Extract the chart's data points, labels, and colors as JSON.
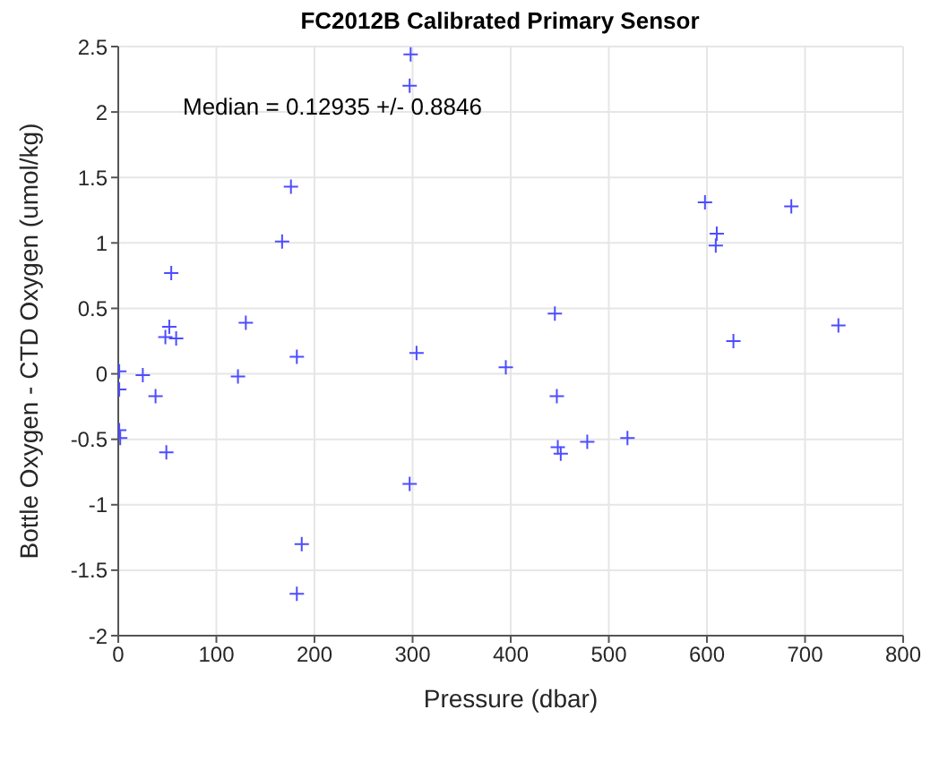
{
  "chart_data": {
    "type": "scatter",
    "title": "FC2012B Calibrated Primary Sensor",
    "xlabel": "Pressure (dbar)",
    "ylabel": "Bottle Oxygen - CTD Oxygen (umol/kg)",
    "annotations": [
      "Median = 0.12935 +/- 0.8846"
    ],
    "xlim": [
      0,
      800
    ],
    "xticks": [
      0,
      100,
      200,
      300,
      400,
      500,
      600,
      700,
      800
    ],
    "ylim": [
      -2,
      2.5
    ],
    "yticks": [
      -2,
      -1.5,
      -1,
      -0.5,
      0,
      0.5,
      1,
      1.5,
      2,
      2.5
    ],
    "grid": true,
    "marker": "cross",
    "series": [
      {
        "color": "#4d4dff",
        "x": [
          1,
          1,
          1,
          2,
          25,
          38,
          49,
          54,
          52,
          48,
          59,
          130,
          122,
          167,
          176,
          182,
          182,
          187,
          298,
          297,
          304,
          297,
          395,
          445,
          447,
          448,
          451,
          478,
          519,
          627,
          598,
          610,
          609,
          686,
          734
        ],
        "values": [
          0.02,
          -0.12,
          -0.43,
          -0.49,
          -0.01,
          -0.17,
          -0.6,
          0.77,
          0.36,
          0.28,
          0.27,
          0.39,
          -0.02,
          1.01,
          1.43,
          0.13,
          -1.68,
          -1.3,
          2.44,
          2.2,
          0.16,
          -0.84,
          0.05,
          0.46,
          -0.17,
          -0.56,
          -0.61,
          -0.52,
          -0.49,
          0.25,
          1.31,
          1.07,
          0.98,
          1.28,
          0.37
        ]
      }
    ]
  }
}
